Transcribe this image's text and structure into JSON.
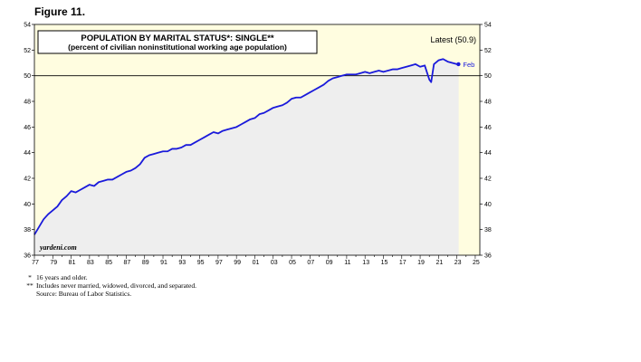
{
  "figure_label": "Figure 11.",
  "chart_data": {
    "type": "line",
    "title": "POPULATION BY MARITAL STATUS*: SINGLE**",
    "subtitle": "(percent of civilian noninstitutional working age population)",
    "latest_label": "Latest (50.9)",
    "end_label": "Feb",
    "watermark": "yardeni.com",
    "ylim": [
      36,
      54
    ],
    "yticks": [
      36,
      38,
      40,
      42,
      44,
      46,
      48,
      50,
      52,
      54
    ],
    "xlim": [
      1977,
      2025.5
    ],
    "xticks": [
      1977,
      1979,
      1981,
      1983,
      1985,
      1987,
      1989,
      1991,
      1993,
      1995,
      1997,
      1999,
      2001,
      2003,
      2005,
      2007,
      2009,
      2011,
      2013,
      2015,
      2017,
      2019,
      2021,
      2023,
      2025
    ],
    "xtick_labels": [
      "77",
      "79",
      "81",
      "83",
      "85",
      "87",
      "89",
      "91",
      "93",
      "95",
      "97",
      "99",
      "01",
      "03",
      "05",
      "07",
      "09",
      "11",
      "13",
      "15",
      "17",
      "19",
      "21",
      "23",
      "25"
    ],
    "reference_line": 50,
    "shaded_region": [
      1977,
      2023.2
    ],
    "grid": false,
    "legend": "none",
    "colors": {
      "line": "#1a1adb",
      "shade": "#eeeeee",
      "background": "#fffde0",
      "reference": "#000000"
    },
    "series": [
      {
        "x": [
          1977,
          1977.5,
          1978,
          1978.5,
          1979,
          1979.5,
          1980,
          1980.5,
          1981,
          1981.5,
          1982,
          1982.5,
          1983,
          1983.5,
          1984,
          1984.5,
          1985,
          1985.5,
          1986,
          1986.5,
          1987,
          1987.5,
          1988,
          1988.5,
          1989,
          1989.5,
          1990,
          1990.5,
          1991,
          1991.5,
          1992,
          1992.5,
          1993,
          1993.5,
          1994,
          1994.5,
          1995,
          1995.5,
          1996,
          1996.5,
          1997,
          1997.5,
          1998,
          1998.5,
          1999,
          1999.5,
          2000,
          2000.5,
          2001,
          2001.5,
          2002,
          2002.5,
          2003,
          2003.5,
          2004,
          2004.5,
          2005,
          2005.5,
          2006,
          2006.5,
          2007,
          2007.5,
          2008,
          2008.5,
          2009,
          2009.5,
          2010,
          2010.5,
          2011,
          2011.5,
          2012,
          2012.5,
          2013,
          2013.5,
          2014,
          2014.5,
          2015,
          2015.5,
          2016,
          2016.5,
          2017,
          2017.5,
          2018,
          2018.5,
          2019,
          2019.5,
          2020,
          2020.2,
          2020.5,
          2021,
          2021.5,
          2022,
          2022.5,
          2023,
          2023.17
        ],
        "values": [
          37.6,
          38.2,
          38.8,
          39.2,
          39.5,
          39.8,
          40.3,
          40.6,
          41.0,
          40.9,
          41.1,
          41.3,
          41.5,
          41.4,
          41.7,
          41.8,
          41.9,
          41.9,
          42.1,
          42.3,
          42.5,
          42.6,
          42.8,
          43.1,
          43.6,
          43.8,
          43.9,
          44.0,
          44.1,
          44.1,
          44.3,
          44.3,
          44.4,
          44.6,
          44.6,
          44.8,
          45.0,
          45.2,
          45.4,
          45.6,
          45.5,
          45.7,
          45.8,
          45.9,
          46.0,
          46.2,
          46.4,
          46.6,
          46.7,
          47.0,
          47.1,
          47.3,
          47.5,
          47.6,
          47.7,
          47.9,
          48.2,
          48.3,
          48.3,
          48.5,
          48.7,
          48.9,
          49.1,
          49.3,
          49.6,
          49.8,
          49.9,
          50.0,
          50.1,
          50.1,
          50.1,
          50.2,
          50.3,
          50.2,
          50.3,
          50.4,
          50.3,
          50.4,
          50.5,
          50.5,
          50.6,
          50.7,
          50.8,
          50.9,
          50.7,
          50.8,
          49.7,
          49.5,
          50.9,
          51.2,
          51.3,
          51.1,
          51.0,
          50.9,
          50.9
        ]
      }
    ]
  },
  "footnotes": [
    {
      "mark": "*",
      "text": "16 years and older."
    },
    {
      "mark": "**",
      "text": "Includes never married, widowed, divorced, and separated."
    },
    {
      "mark": "",
      "text": "Source: Bureau of Labor Statistics."
    }
  ]
}
